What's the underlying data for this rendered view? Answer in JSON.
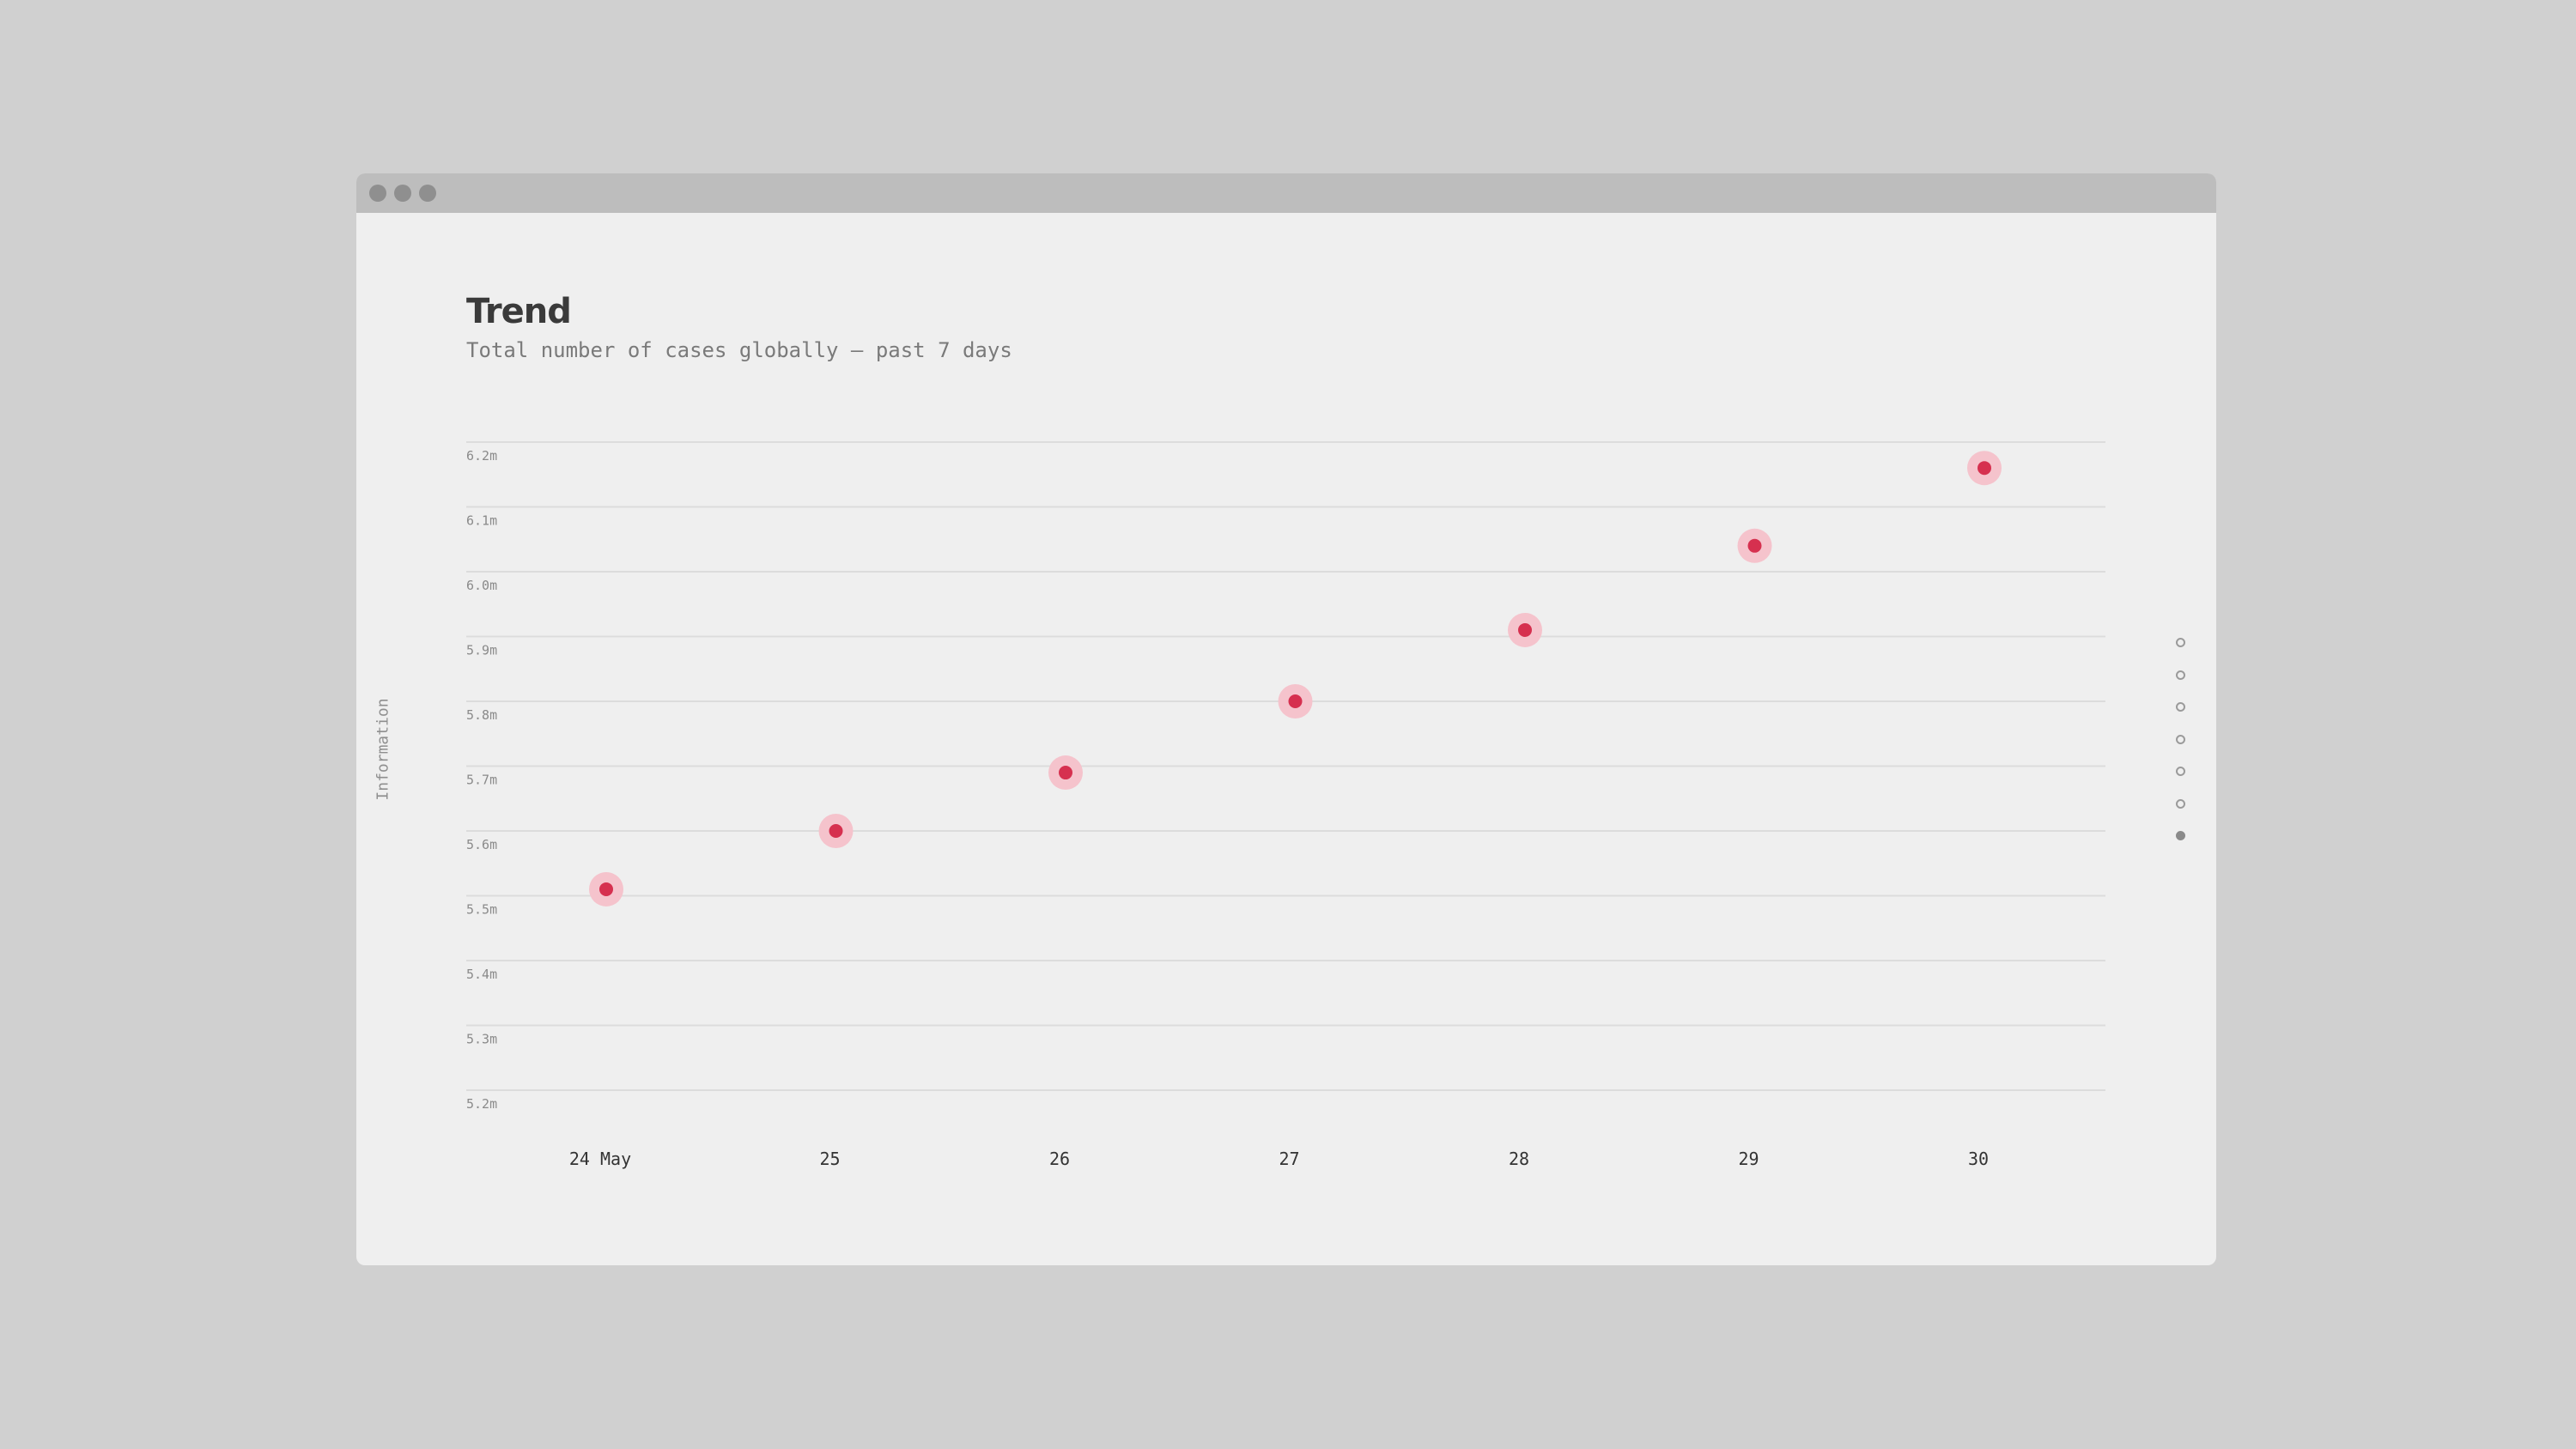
{
  "header": {
    "title": "Trend",
    "subtitle": "Total number of cases globally — past 7 days",
    "side_label": "Information"
  },
  "pager": {
    "count": 7,
    "active_index": 6
  },
  "colors": {
    "point": "#d6304f",
    "halo": "#f5c3cc",
    "grid": "#dcdcdc",
    "tick": "#8a8a8a",
    "xtick": "#333333"
  },
  "chart_data": {
    "type": "scatter",
    "title": "Trend",
    "subtitle": "Total number of cases globally — past 7 days",
    "xlabel": "",
    "ylabel": "Information",
    "categories": [
      "24 May",
      "25",
      "26",
      "27",
      "28",
      "29",
      "30"
    ],
    "y_ticks": [
      "6.2m",
      "6.1m",
      "6.0m",
      "5.9m",
      "5.8m",
      "5.7m",
      "5.6m",
      "5.5m",
      "5.4m",
      "5.3m",
      "5.2m"
    ],
    "ylim": [
      5.2,
      6.2
    ],
    "y_unit": "millions",
    "values": [
      5.51,
      5.6,
      5.69,
      5.8,
      5.91,
      6.04,
      6.16
    ],
    "grid": true,
    "legend": "none"
  }
}
